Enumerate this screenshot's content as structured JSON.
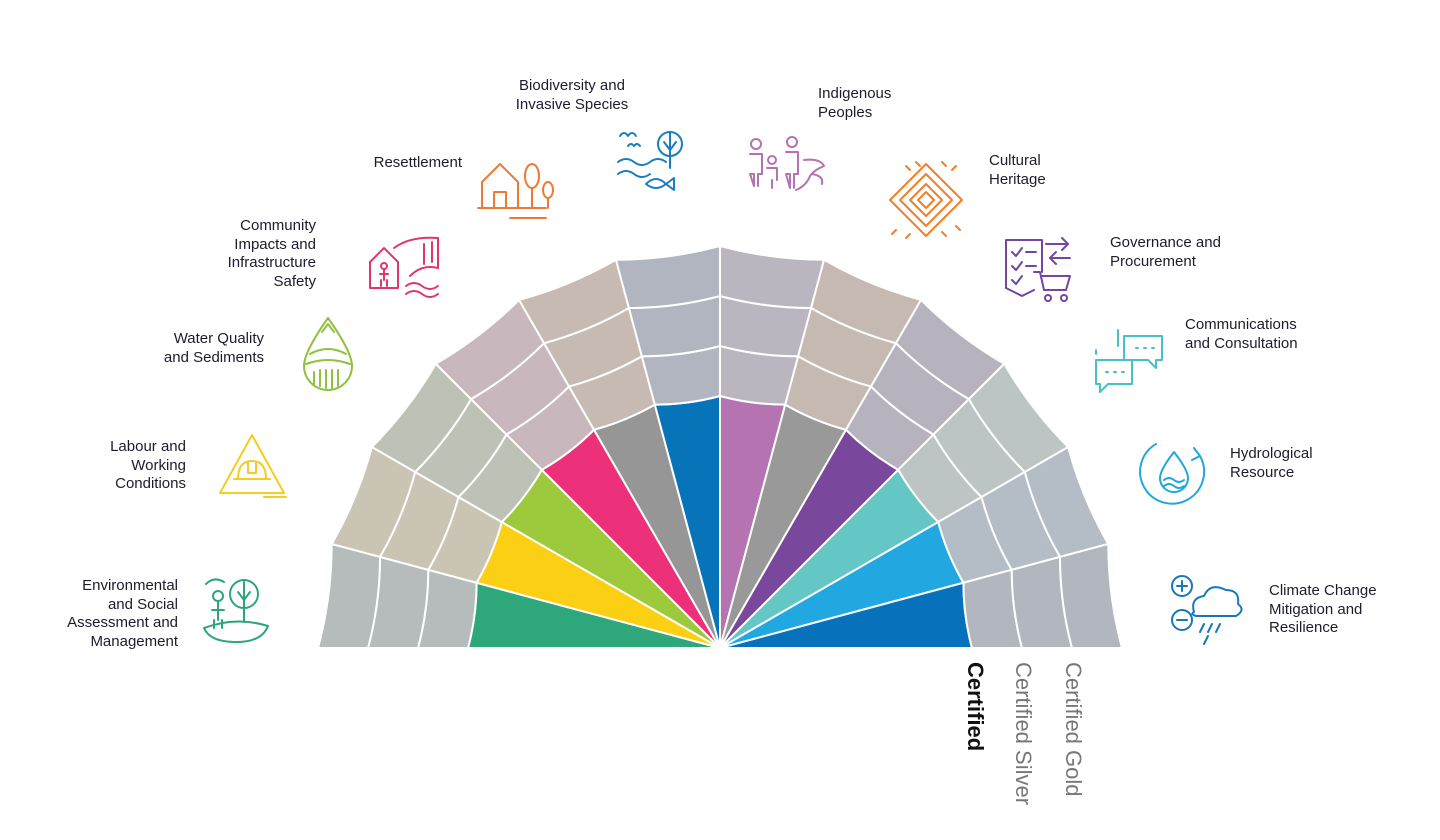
{
  "themes": [
    {
      "lines": [
        "Environmental",
        "and Social",
        "Assessment and",
        "Management"
      ],
      "icon": "person-tree-icon",
      "color": "#2ca57a",
      "core": "#2ea87a",
      "outer": "#b6bcbb"
    },
    {
      "lines": [
        "Labour and",
        "Working",
        "Conditions"
      ],
      "icon": "hardhat-warning-icon",
      "color": "#f5cc1f",
      "core": "#fbcf14",
      "outer": "#c9c4b4"
    },
    {
      "lines": [
        "Water Quality",
        "and Sediments"
      ],
      "icon": "water-drop-icon",
      "color": "#8fc13f",
      "core": "#9cca3c",
      "outer": "#bec2b6"
    },
    {
      "lines": [
        "Community",
        "Impacts and",
        "Infrastructure",
        "Safety"
      ],
      "icon": "community-dam-icon",
      "color": "#e0356f",
      "core": "#ec317a",
      "outer": "#c8b7bc"
    },
    {
      "lines": [
        "Resettlement"
      ],
      "icon": "house-trees-icon",
      "color": "#ec7a34",
      "core": "#969696",
      "outer": "#c6bab3"
    },
    {
      "lines": [
        "Biodiversity and",
        "Invasive Species"
      ],
      "icon": "bird-fish-tree-icon",
      "color": "#1a7dbc",
      "core": "#0773b9",
      "outer": "#b0b5bf"
    },
    {
      "lines": [
        "Indigenous",
        "Peoples"
      ],
      "icon": "family-path-icon",
      "color": "#b373b0",
      "core": "#b673b1",
      "outer": "#bbb5bf"
    },
    {
      "lines": [
        "Cultural",
        "Heritage"
      ],
      "icon": "diamond-pattern-icon",
      "color": "#ef7f2a",
      "core": "#999999",
      "outer": "#c6b9b2"
    },
    {
      "lines": [
        "Governance and",
        "Procurement"
      ],
      "icon": "checklist-cart-icon",
      "color": "#7446a0",
      "core": "#79489c",
      "outer": "#b6b3be"
    },
    {
      "lines": [
        "Communications",
        "and Consultation"
      ],
      "icon": "chat-bubbles-icon",
      "color": "#4bbfc7",
      "core": "#64c7c6",
      "outer": "#bcc4c4"
    },
    {
      "lines": [
        "Hydrological",
        "Resource"
      ],
      "icon": "water-cycle-icon",
      "color": "#22a7dc",
      "core": "#22a8e0",
      "outer": "#b4bcc6"
    },
    {
      "lines": [
        "Climate Change",
        "Mitigation and",
        "Resilience"
      ],
      "icon": "cloud-plus-minus-icon",
      "color": "#1777ba",
      "core": "#0772bb",
      "outer": "#b2b6bf"
    }
  ],
  "levels": [
    "Certified",
    "Certified Silver",
    "Certified Gold"
  ]
}
